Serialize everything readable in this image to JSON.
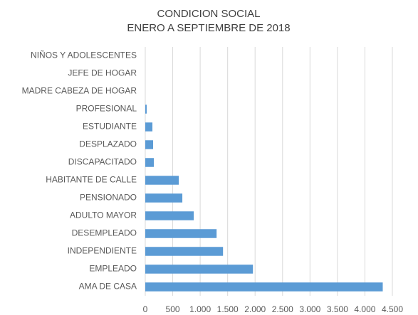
{
  "chart_data": {
    "type": "hbar",
    "title": "CONDICION SOCIAL",
    "subtitle": "ENERO A SEPTIEMBRE DE 2018",
    "categories": [
      "NIÑOS Y ADOLESCENTES",
      "JEFE DE HOGAR",
      "MADRE CABEZA DE HOGAR",
      "PROFESIONAL",
      "ESTUDIANTE",
      "DESPLAZADO",
      "DISCAPACITADO",
      "HABITANTE DE CALLE",
      "PENSIONADO",
      "ADULTO MAYOR",
      "DESEMPLEADO",
      "INDEPENDIENTE",
      "EMPLEADO",
      "AMA DE CASA"
    ],
    "values": [
      0,
      0,
      0,
      26,
      130,
      143,
      156,
      610,
      675,
      883,
      1299,
      1416,
      1961,
      4325
    ],
    "color": "#5b9bd5",
    "xlim": [
      0,
      4500
    ],
    "xticks": [
      0,
      500,
      {
        "value": 1000,
        "label": "1.000"
      },
      {
        "value": 1500,
        "label": "1.500"
      },
      {
        "value": 2000,
        "label": "2.000"
      },
      {
        "value": 2500,
        "label": "2.500"
      },
      {
        "value": 3000,
        "label": "3.000"
      },
      {
        "value": 3500,
        "label": "3.500"
      },
      {
        "value": 4000,
        "label": "4.000"
      },
      {
        "value": 4500,
        "label": "4.500"
      }
    ],
    "grid": true
  }
}
